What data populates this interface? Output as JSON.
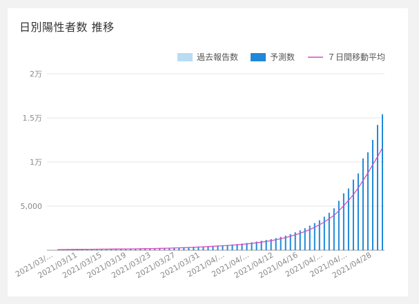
{
  "chart_data": {
    "type": "bar",
    "title": "日別陽性者数 推移",
    "legend": {
      "placement": "top-right",
      "items": [
        {
          "label": "過去報告数",
          "color": "#b8dcf4",
          "kind": "bar"
        },
        {
          "label": "予測数",
          "color": "#1f88d8",
          "kind": "bar"
        },
        {
          "label": "７日間移動平均",
          "color": "#d64bc0",
          "kind": "line"
        }
      ]
    },
    "ylim": [
      0,
      20000
    ],
    "y_ticks": [
      {
        "value": 0,
        "label": ""
      },
      {
        "value": 5000,
        "label": "5,000"
      },
      {
        "value": 10000,
        "label": "1万"
      },
      {
        "value": 15000,
        "label": "1.5万"
      },
      {
        "value": 20000,
        "label": "2万"
      }
    ],
    "grid": true,
    "x_tick_labels": [
      "2021/03/...",
      "2021/03/11",
      "2021/03/15",
      "2021/03/19",
      "2021/03/23",
      "2021/03/27",
      "2021/03/31",
      "2021/04/...",
      "2021/04/...",
      "2021/04/12",
      "2021/04/16",
      "2021/04/...",
      "2021/04/...",
      "2021/04/28"
    ],
    "series": [
      {
        "name": "予測数",
        "values": [
          80,
          90,
          95,
          100,
          105,
          110,
          115,
          120,
          125,
          130,
          135,
          140,
          145,
          150,
          155,
          160,
          170,
          180,
          190,
          200,
          210,
          230,
          250,
          270,
          290,
          310,
          330,
          350,
          380,
          410,
          440,
          470,
          500,
          530,
          560,
          600,
          650,
          700,
          760,
          820,
          900,
          980,
          1070,
          1160,
          1260,
          1380,
          1510,
          1660,
          1830,
          2030,
          2250,
          2500,
          2780,
          3080,
          3400,
          3800,
          4250,
          4750,
          5600,
          6450,
          7000,
          8000,
          8700,
          10400,
          11100,
          12500,
          14200,
          15400
        ]
      },
      {
        "name": "７日間移動平均",
        "values": [
          75,
          82,
          88,
          93,
          98,
          103,
          108,
          113,
          118,
          123,
          128,
          133,
          138,
          143,
          148,
          153,
          160,
          168,
          177,
          186,
          196,
          208,
          222,
          238,
          255,
          273,
          292,
          312,
          334,
          358,
          385,
          413,
          443,
          473,
          504,
          537,
          575,
          617,
          664,
          716,
          775,
          841,
          915,
          997,
          1088,
          1190,
          1304,
          1432,
          1576,
          1738,
          1919,
          2120,
          2345,
          2600,
          2880,
          3200,
          3560,
          3960,
          4470,
          5050,
          5650,
          6300,
          7050,
          7900,
          8750,
          9700,
          10600,
          11600
        ]
      }
    ]
  }
}
